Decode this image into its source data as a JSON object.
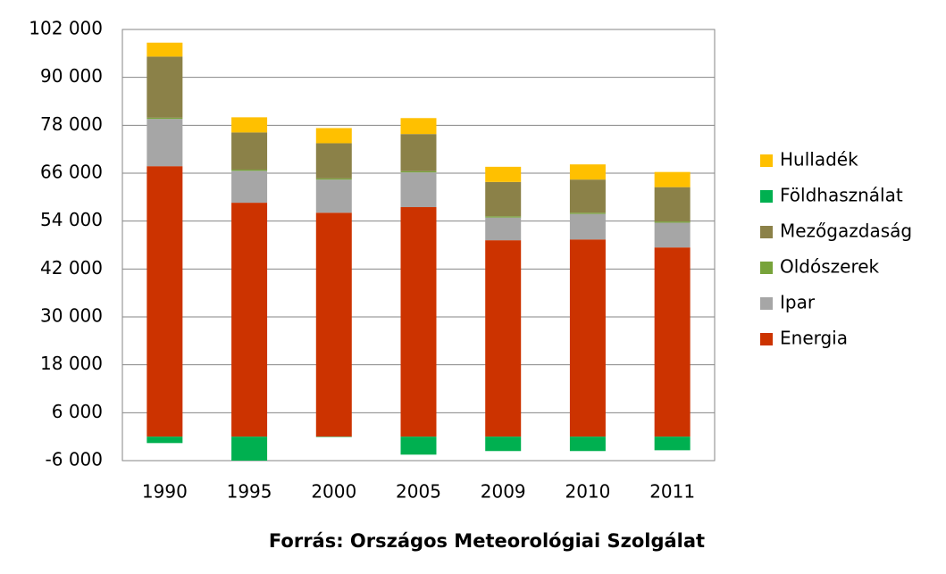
{
  "chart_data": {
    "type": "stacked_bar",
    "categories": [
      "1990",
      "1995",
      "2000",
      "2005",
      "2009",
      "2010",
      "2011"
    ],
    "series": [
      {
        "name": "Energia",
        "color": "#cc3300",
        "values": [
          67750,
          58600,
          56100,
          57500,
          49200,
          49400,
          47400
        ]
      },
      {
        "name": "Ipar",
        "color": "#a6a6a6",
        "values": [
          11850,
          8000,
          8300,
          8700,
          5700,
          6400,
          6200
        ]
      },
      {
        "name": "Oldószerek",
        "color": "#77a33a",
        "values": [
          300,
          300,
          300,
          300,
          300,
          300,
          300
        ]
      },
      {
        "name": "Mezőgazdaság",
        "color": "#8b8148",
        "values": [
          15300,
          9300,
          8800,
          9300,
          8600,
          8300,
          8600
        ]
      },
      {
        "name": "Földhasználat",
        "color": "#00b050",
        "values": [
          -1600,
          -6000,
          -100,
          -4500,
          -3600,
          -3600,
          -3400
        ]
      },
      {
        "name": "Hulladék",
        "color": "#ffc000",
        "values": [
          3500,
          3800,
          3800,
          4000,
          3800,
          3800,
          3800
        ]
      }
    ],
    "ylim": [
      -6000,
      102000
    ],
    "yticks": [
      {
        "value": -6000,
        "label": "-6 000"
      },
      {
        "value": 6000,
        "label": "6 000"
      },
      {
        "value": 18000,
        "label": "18 000"
      },
      {
        "value": 30000,
        "label": "30 000"
      },
      {
        "value": 42000,
        "label": "42 000"
      },
      {
        "value": 54000,
        "label": "54 000"
      },
      {
        "value": 66000,
        "label": "66 000"
      },
      {
        "value": 78000,
        "label": "78 000"
      },
      {
        "value": 90000,
        "label": "90 000"
      },
      {
        "value": 102000,
        "label": "102 000"
      }
    ],
    "grid": true,
    "legend": "right",
    "source": "Forrás: Országos Meteorológiai Szolgálat"
  }
}
